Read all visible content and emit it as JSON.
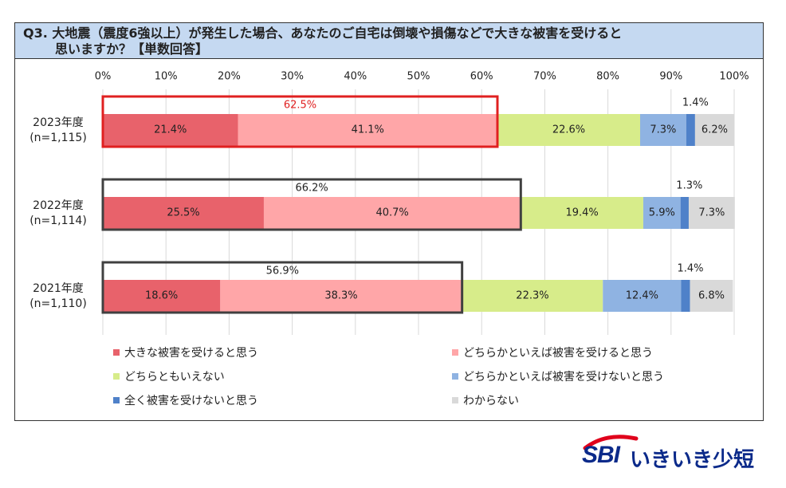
{
  "question": {
    "line1": "Q3. 大地震（震度6強以上）が発生した場合、あなたのご自宅は倒壊や損傷などで大きな被害を受けると",
    "line2": "思いますか？【単数回答】"
  },
  "chart_data": {
    "type": "bar",
    "orientation": "horizontal",
    "stacked": true,
    "xlim": [
      0,
      100
    ],
    "x_ticks": [
      "0%",
      "10%",
      "20%",
      "30%",
      "40%",
      "50%",
      "60%",
      "70%",
      "80%",
      "90%",
      "100%"
    ],
    "categories": [
      {
        "label": "2023年度",
        "n": "(n=1,115)"
      },
      {
        "label": "2022年度",
        "n": "(n=1,114)"
      },
      {
        "label": "2021年度",
        "n": "(n=1,110)"
      }
    ],
    "series": [
      {
        "name": "大きな被害を受けると思う",
        "color": "#e8626b",
        "values": [
          21.4,
          25.5,
          18.6
        ],
        "labels": [
          "21.4%",
          "25.5%",
          "18.6%"
        ]
      },
      {
        "name": "どちらかといえば被害を受けると思う",
        "color": "#ffa6a8",
        "values": [
          41.1,
          40.7,
          38.3
        ],
        "labels": [
          "41.1%",
          "40.7%",
          "38.3%"
        ]
      },
      {
        "name": "どちらともいえない",
        "color": "#d7ec8a",
        "values": [
          22.6,
          19.4,
          22.3
        ],
        "labels": [
          "22.6%",
          "19.4%",
          "22.3%"
        ]
      },
      {
        "name": "どちらかといえば被害を受けないと思う",
        "color": "#8fb3e2",
        "values": [
          7.3,
          5.9,
          12.4
        ],
        "labels": [
          "7.3%",
          "5.9%",
          "12.4%"
        ]
      },
      {
        "name": "全く被害を受けないと思う",
        "color": "#4f81c9",
        "values": [
          1.4,
          1.3,
          1.4
        ],
        "labels": [
          "1.4%",
          "1.3%",
          "1.4%"
        ]
      },
      {
        "name": "わからない",
        "color": "#d9d9d9",
        "values": [
          6.2,
          7.3,
          6.8
        ],
        "labels": [
          "6.2%",
          "7.3%",
          "6.8%"
        ]
      }
    ],
    "combined_totals": [
      {
        "value": 62.5,
        "label": "62.5%",
        "highlight": true
      },
      {
        "value": 66.2,
        "label": "66.2%",
        "highlight": false
      },
      {
        "value": 56.9,
        "label": "56.9%",
        "highlight": false
      }
    ],
    "legend_position": "bottom"
  },
  "colors": {
    "highlight_box": "#e02020",
    "normal_box": "#404040",
    "highlight_text": "#e02020",
    "header_bg": "#c5d9f1",
    "brand": "#0b2a8a",
    "brand_arc": "#e0001b"
  },
  "logo": {
    "brand": "SBI",
    "name": "いきいき少短"
  }
}
